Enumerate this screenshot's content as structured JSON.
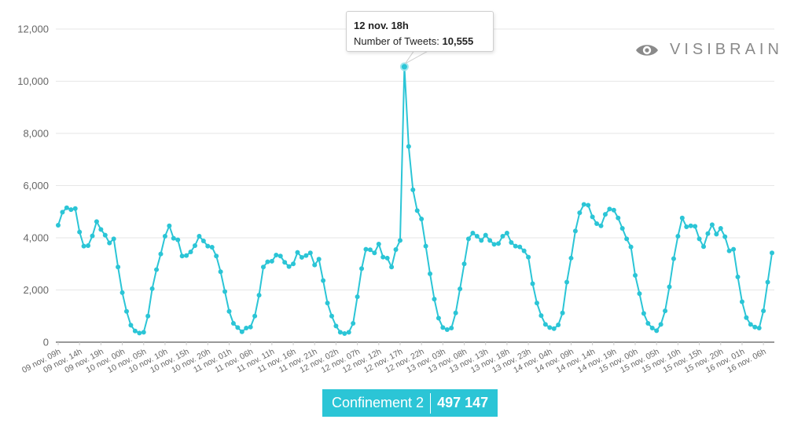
{
  "brand": {
    "name": "VISIBRAIN",
    "logo_icon": "eye-icon"
  },
  "tooltip": {
    "title": "12 nov. 18h",
    "label": "Number of Tweets:",
    "value": "10,555"
  },
  "badge": {
    "label": "Confinement 2",
    "value": "497 147"
  },
  "colors": {
    "series": "#2bc5d6",
    "badge": "#2bc5d6",
    "brand": "#8a8a8a"
  },
  "chart_data": {
    "type": "line",
    "title": "",
    "xlabel": "",
    "ylabel": "",
    "ylim": [
      0,
      12000
    ],
    "y_ticks": [
      0,
      2000,
      4000,
      6000,
      8000,
      10000,
      12000
    ],
    "y_tick_labels": [
      "0",
      "2,000",
      "4,000",
      "6,000",
      "8,000",
      "10,000",
      "12,000"
    ],
    "x_tick_labels": [
      "09 nov. 09h",
      "09 nov. 14h",
      "09 nov. 19h",
      "10 nov. 00h",
      "10 nov. 05h",
      "10 nov. 10h",
      "10 nov. 15h",
      "10 nov. 20h",
      "11 nov. 01h",
      "11 nov. 06h",
      "11 nov. 11h",
      "11 nov. 16h",
      "11 nov. 21h",
      "12 nov. 02h",
      "12 nov. 07h",
      "12 nov. 12h",
      "12 nov. 17h",
      "12 nov. 22h",
      "13 nov. 03h",
      "13 nov. 08h",
      "13 nov. 13h",
      "13 nov. 18h",
      "13 nov. 23h",
      "14 nov. 04h",
      "14 nov. 09h",
      "14 nov. 14h",
      "14 nov. 19h",
      "15 nov. 00h",
      "15 nov. 05h",
      "15 nov. 10h",
      "15 nov. 15h",
      "15 nov. 20h",
      "16 nov. 01h",
      "16 nov. 06h"
    ],
    "x_tick_step_hours": 5,
    "grid": true,
    "highlight": {
      "x": "12 nov. 18h",
      "y": 10555
    },
    "series": [
      {
        "values": [
          4480,
          4980,
          5150,
          5080,
          5120,
          4220,
          3680,
          3700,
          4070,
          4620,
          4320,
          4100,
          3800,
          3960,
          2880,
          1900,
          1180,
          650,
          430,
          350,
          380,
          1000,
          2050,
          2780,
          3380,
          4060,
          4460,
          3980,
          3920,
          3300,
          3320,
          3460,
          3700,
          4060,
          3880,
          3680,
          3640,
          3300,
          2700,
          1940,
          1180,
          720,
          560,
          400,
          540,
          580,
          1000,
          1800,
          2880,
          3080,
          3100,
          3340,
          3300,
          3060,
          2900,
          3000,
          3440,
          3250,
          3320,
          3420,
          2960,
          3180,
          2360,
          1500,
          1000,
          620,
          380,
          330,
          380,
          720,
          1740,
          2820,
          3560,
          3540,
          3420,
          3760,
          3260,
          3220,
          2880,
          3550,
          3900,
          10555,
          7500,
          5840,
          5040,
          4720,
          3680,
          2620,
          1650,
          920,
          560,
          480,
          540,
          1120,
          2040,
          3000,
          3960,
          4180,
          4060,
          3900,
          4100,
          3900,
          3750,
          3780,
          4060,
          4180,
          3820,
          3680,
          3650,
          3500,
          3260,
          2240,
          1500,
          1020,
          680,
          560,
          520,
          660,
          1120,
          2300,
          3220,
          4260,
          4960,
          5280,
          5250,
          4800,
          4540,
          4460,
          4900,
          5100,
          5060,
          4760,
          4360,
          3960,
          3650,
          2560,
          1860,
          1100,
          720,
          540,
          440,
          680,
          1200,
          2120,
          3200,
          4060,
          4760,
          4420,
          4460,
          4440,
          3960,
          3660,
          4160,
          4500,
          4140,
          4360,
          4040,
          3500,
          3560,
          2500,
          1550,
          940,
          680,
          580,
          540,
          1200,
          2300,
          3420
        ]
      }
    ]
  }
}
